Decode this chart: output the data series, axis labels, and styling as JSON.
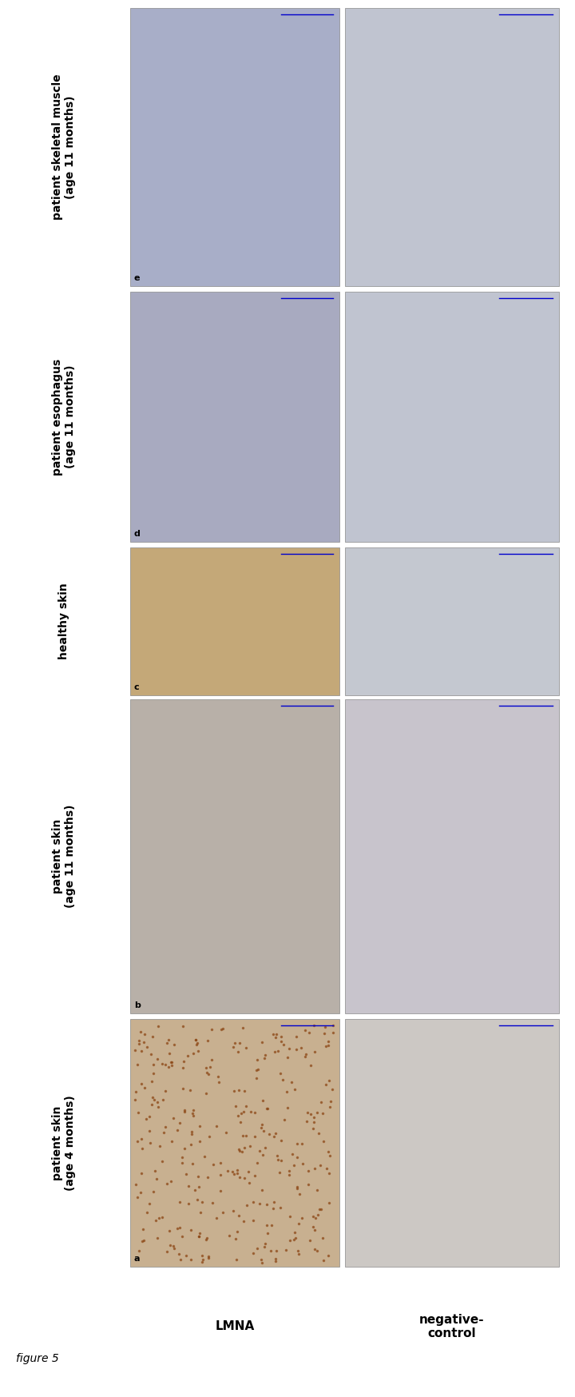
{
  "figure_label": "figure 5",
  "row_labels": [
    "LMNA",
    "negative-\ncontrol"
  ],
  "col_labels": [
    "patient skin\n(age 4 months)",
    "patient skin\n(age 11 months)",
    "healthy skin",
    "patient esophagus\n(age 11 months)",
    "patient skeletal muscle\n(age 11 months)"
  ],
  "panel_letters": [
    "a",
    "b",
    "c",
    "d",
    "e"
  ],
  "n_rows": 2,
  "n_cols": 5,
  "bg_color": "#ffffff",
  "label_fontsize": 11,
  "letter_fontsize": 9,
  "figure_label_fontsize": 10,
  "panel_colors_row0": [
    "#d4b896",
    "#c8bfb8",
    "#c9a882",
    "#b8b8cc",
    "#b8bdd4"
  ],
  "panel_colors_row1": [
    "#d4cfc8",
    "#d0cdd4",
    "#cccdd8",
    "#c8ccd8",
    "#c8ccd8"
  ]
}
